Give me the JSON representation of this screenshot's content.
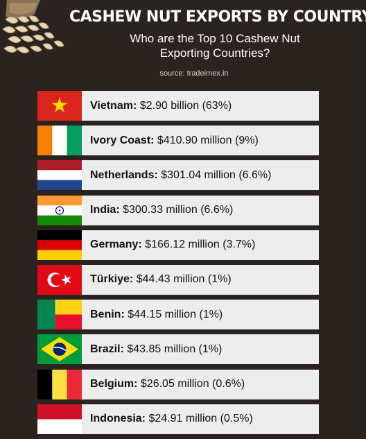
{
  "title": "CASHEW NUT EXPORTS BY COUNTRY",
  "subtitle_line1": "Who are the Top 10 Cashew Nut",
  "subtitle_line2": "Exporting Countries?",
  "source": "source: tradeimex.in",
  "rows": [
    {
      "country": "Vietnam:",
      "value": "$2.90 billion (63%)",
      "flag": "vietnam-flag-icon"
    },
    {
      "country": "Ivory Coast:",
      "value": "$410.90 million (9%)",
      "flag": "ivory-coast-flag-icon"
    },
    {
      "country": "Netherlands:",
      "value": "$301.04 million (6.6%)",
      "flag": "netherlands-flag-icon"
    },
    {
      "country": "India:",
      "value": "$300.33 million (6.6%)",
      "flag": "india-flag-icon"
    },
    {
      "country": "Germany:",
      "value": "$166.12 million (3.7%)",
      "flag": "germany-flag-icon"
    },
    {
      "country": "Türkiye:",
      "value": "$44.43 million (1%)",
      "flag": "turkey-flag-icon"
    },
    {
      "country": "Benin:",
      "value": "$44.15 million (1%)",
      "flag": "benin-flag-icon"
    },
    {
      "country": "Brazil:",
      "value": "$43.85 million (1%)",
      "flag": "brazil-flag-icon"
    },
    {
      "country": "Belgium:",
      "value": "$26.05 million (0.6%)",
      "flag": "belgium-flag-icon"
    },
    {
      "country": "Indonesia:",
      "value": "$24.91 million (0.5%)",
      "flag": "indonesia-flag-icon"
    }
  ],
  "colors": {
    "background": "#2b2320",
    "row_background": "#ededed"
  }
}
